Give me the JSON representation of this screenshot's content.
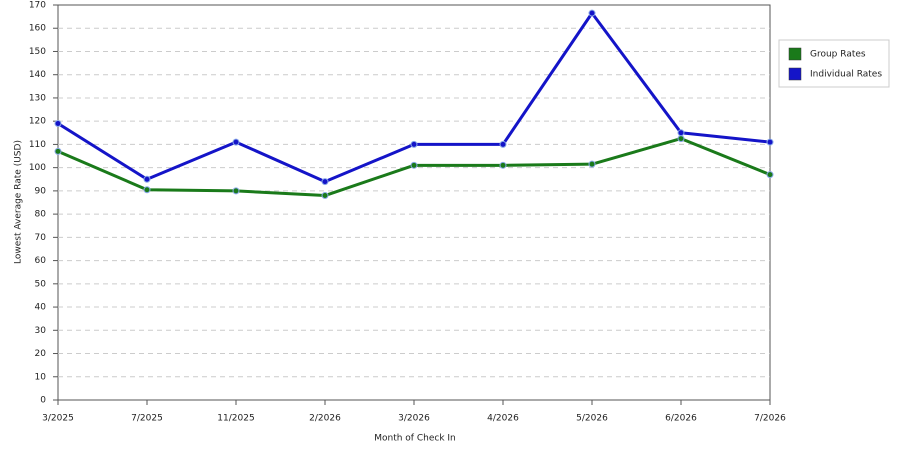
{
  "chart_data": {
    "type": "line",
    "x_label": "Month of Check In",
    "y_label": "Lowest Average Rate (USD)",
    "categories": [
      "3/2025",
      "7/2025",
      "11/2025",
      "2/2026",
      "3/2026",
      "4/2026",
      "5/2026",
      "6/2026",
      "7/2026"
    ],
    "series": [
      {
        "name": "Group Rates",
        "color": "#1a7a1a",
        "values": [
          107,
          90.5,
          90,
          88,
          101,
          101,
          101.5,
          112.5,
          97
        ]
      },
      {
        "name": "Individual Rates",
        "color": "#1414c8",
        "values": [
          119,
          95,
          111,
          94,
          110,
          110,
          166.5,
          115,
          111
        ]
      }
    ],
    "ylim": [
      0,
      170
    ],
    "yticks": [
      0,
      10,
      20,
      30,
      40,
      50,
      60,
      70,
      80,
      90,
      100,
      110,
      120,
      130,
      140,
      150,
      160,
      170
    ],
    "grid": true
  }
}
